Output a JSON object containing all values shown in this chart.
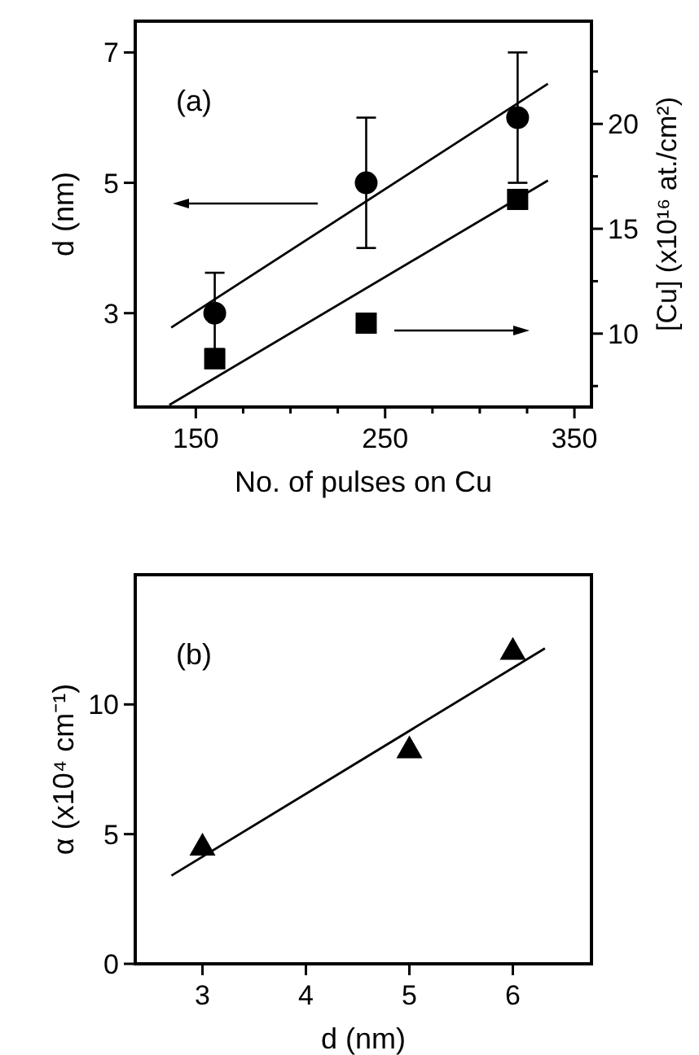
{
  "chart_data": [
    {
      "type": "scatter",
      "xlabel": "No. of pulses on Cu",
      "ylabel": "d (nm)",
      "y2label": "[Cu] (x10¹⁶ at./cm²)",
      "annotations": [
        "(a)"
      ],
      "xlim": [
        118,
        359
      ],
      "xticks": [
        150,
        {
          "value": 175,
          "label": null
        },
        {
          "value": 200,
          "label": null
        },
        {
          "value": 225,
          "label": null
        },
        250,
        {
          "value": 275,
          "label": null
        },
        {
          "value": 300,
          "label": null
        },
        {
          "value": 325,
          "label": null
        },
        350
      ],
      "ylim": [
        1.56,
        7.48
      ],
      "yticks": [
        3,
        5,
        7
      ],
      "y2lim": [
        6.5,
        24.9
      ],
      "y2ticks": [
        {
          "value": 7.5,
          "label": null
        },
        10,
        {
          "value": 12.5,
          "label": null
        },
        15,
        {
          "value": 17.5,
          "label": null
        },
        20,
        {
          "value": 22.5,
          "label": null
        }
      ],
      "grid": false,
      "series": [
        {
          "type": "scatter",
          "marker": "circle",
          "color": "#000000",
          "x": [
            160,
            240,
            320
          ],
          "values": [
            3,
            5,
            6
          ],
          "errors": [
            [
              2.45,
              3.62
            ],
            [
              4,
              6
            ],
            [
              5,
              7
            ]
          ]
        },
        {
          "type": "scatter",
          "marker": "square",
          "color": "#000000",
          "axis": "y2",
          "x": [
            160,
            240,
            320
          ],
          "values": [
            8.8,
            10.5,
            16.4
          ]
        },
        {
          "type": "line",
          "color": "#000000",
          "x": [
            137,
            336
          ],
          "values": [
            2.78,
            6.52
          ]
        },
        {
          "type": "line",
          "color": "#000000",
          "axis": "y2",
          "x": [
            136,
            336
          ],
          "values": [
            6.6,
            17.3
          ]
        }
      ]
    },
    {
      "type": "scatter",
      "xlabel": "d (nm)",
      "ylabel": "α (x10⁴ cm⁻¹)",
      "annotations": [
        "(b)"
      ],
      "xlim": [
        2.35,
        6.76
      ],
      "xticks": [
        3,
        4,
        5,
        6
      ],
      "ylim": [
        0,
        15
      ],
      "yticks": [
        0,
        5,
        10
      ],
      "grid": false,
      "series": [
        {
          "type": "scatter",
          "marker": "triangle",
          "color": "#000000",
          "x": [
            3,
            5,
            6
          ],
          "values": [
            4.55,
            8.3,
            12.1
          ]
        },
        {
          "type": "line",
          "color": "#000000",
          "x": [
            2.7,
            6.31
          ],
          "values": [
            3.4,
            12.16
          ]
        }
      ]
    }
  ]
}
